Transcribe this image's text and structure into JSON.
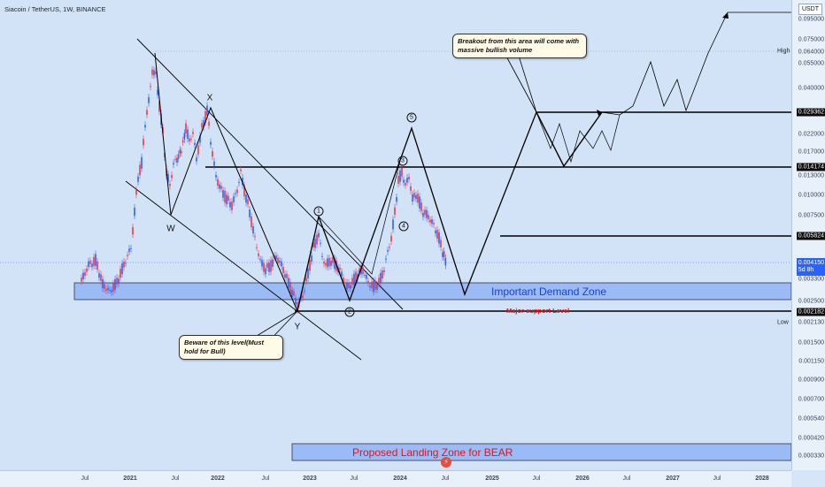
{
  "header": {
    "symbol": "Siacoin / TetherUS, 1W, BINANCE"
  },
  "currency": "USDT",
  "price_axis": {
    "ticks": [
      "0.095000",
      "0.075000",
      "0.064000",
      "0.055000",
      "0.040000",
      "0.029362",
      "0.022000",
      "0.017000",
      "0.014174",
      "0.013000",
      "0.010000",
      "0.007500",
      "0.005824",
      "0.004150",
      "0.003300",
      "0.002500",
      "0.002182",
      "0.002130",
      "0.001500",
      "0.001150",
      "0.000900",
      "0.000700",
      "0.000540",
      "0.000420",
      "0.000330"
    ],
    "badges": {
      "b1": "0.029362",
      "b2": "0.014174",
      "b3": "0.005824",
      "b4": "0.002182",
      "current_price": "0.004150",
      "countdown": "5d 8h"
    },
    "high_label": "High",
    "low_label": "Low"
  },
  "time_axis": [
    "Jul",
    "2021",
    "Jul",
    "2022",
    "Jul",
    "2023",
    "Jul",
    "2024",
    "Jul",
    "2025",
    "Jul",
    "2026",
    "Jul",
    "2027",
    "Jul",
    "2028"
  ],
  "annotations": {
    "breakout_note": "Breakout from this area will come with massive bullish volume",
    "beware_note": "Beware of this level(Must hold for Bull)",
    "demand_zone": "Important Demand Zone",
    "major_support": "Major support Level",
    "landing_zone": "Proposed Landing Zone for BEAR"
  },
  "waves": {
    "x": "X",
    "w": "W",
    "y": "Y",
    "n1": "1",
    "n2": "2",
    "n3": "3",
    "n4": "4",
    "n5": "5"
  },
  "colors": {
    "background": "#d3e3f7",
    "up_candle": "#2962ff",
    "down_candle": "#f23645",
    "zone_fill": "#8fb4f5",
    "zone_text": "#1a3fd6",
    "support_text": "#e0141e"
  }
}
